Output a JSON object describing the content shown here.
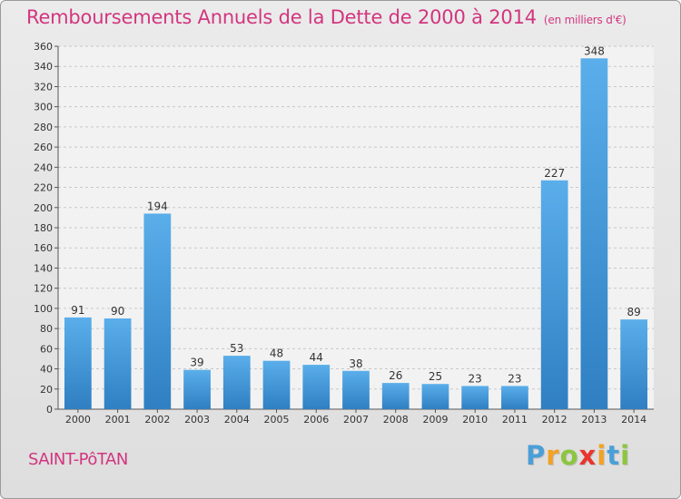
{
  "title": "Remboursements Annuels de la Dette de 2000 à 2014",
  "unit": "(en milliers d'€)",
  "location": "SAINT-PôTAN",
  "logo": {
    "letters": [
      "P",
      "r",
      "o",
      "x",
      "i",
      "t",
      "i"
    ],
    "colors": [
      "#4a9fd8",
      "#f2a224",
      "#8cc63f",
      "#e8352f",
      "#f2a224",
      "#4a9fd8",
      "#8cc63f"
    ]
  },
  "colors": {
    "accent": "#d2357f",
    "bar_light": "#5aaeea",
    "bar_dark": "#2f7fc2"
  },
  "chart_data": {
    "type": "bar",
    "categories": [
      "2000",
      "2001",
      "2002",
      "2003",
      "2004",
      "2005",
      "2006",
      "2007",
      "2008",
      "2009",
      "2010",
      "2011",
      "2012",
      "2013",
      "2014"
    ],
    "values": [
      91,
      90,
      194,
      39,
      53,
      48,
      44,
      38,
      26,
      25,
      23,
      23,
      227,
      348,
      89
    ],
    "title": "Remboursements Annuels de la Dette de 2000 à 2014",
    "xlabel": "",
    "ylabel": "",
    "ylim": [
      0,
      360
    ],
    "yticks": [
      0,
      20,
      40,
      60,
      80,
      100,
      120,
      140,
      160,
      180,
      200,
      220,
      240,
      260,
      280,
      300,
      320,
      340,
      360
    ],
    "grid": true,
    "data_labels": true
  }
}
